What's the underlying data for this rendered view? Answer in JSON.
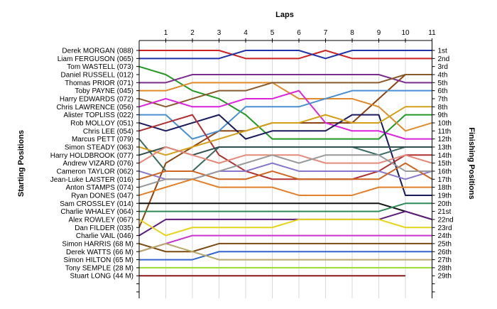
{
  "chart_data": {
    "type": "line",
    "title": "Laps",
    "ylabel_left": "Starting Positions",
    "ylabel_right": "Finishing Positions",
    "x": [
      0,
      1,
      2,
      3,
      4,
      5,
      6,
      7,
      8,
      9,
      10,
      11
    ],
    "x_tick_labels": [
      "1",
      "2",
      "3",
      "4",
      "5",
      "6",
      "7",
      "8",
      "9",
      "10",
      "11"
    ],
    "starting_labels": [
      "Derek MORGAN (088)",
      "Liam FERGUSON (065)",
      "Tom WASTELL (073)",
      "Daniel RUSSELL (012)",
      "Thomas PRIOR (071)",
      "Toby PAYNE (045)",
      "Harry EDWARDS (072)",
      "Chris LAWRENCE (056)",
      "Alister TOPLISS (022)",
      "Rob MOLLOY (051)",
      "Chris LEE (054)",
      "Marcus PETT (079)",
      "Simon STEADY (063)",
      "Harry HOLDBROOK (077)",
      "Andrew VIZARD (076)",
      "Cameron TAYLOR (062)",
      "Jean-Luke LAISTER (016)",
      "Anton STAMPS (074)",
      "Ryan DONES (047)",
      "Sam CROSSLEY (014)",
      "Charlie WHALEY (064)",
      "Alex ROWLEY (067)",
      "Dan FILDER (035)",
      "Charlie VAIL (046)",
      "Simon HARRIS (68 M)",
      "Derek WATTS (66 M)",
      "Simon HILTON (65 M)",
      "Tony SEMPLE (28 M)",
      "Stuart LONG (44 M)"
    ],
    "finishing_labels": [
      "1st",
      "2nd",
      "3rd",
      "4th",
      "5th",
      "6th",
      "7th",
      "8th",
      "9th",
      "10th",
      "11th",
      "12th",
      "13th",
      "14th",
      "15th",
      "16th",
      "17th",
      "18th",
      "19th",
      "20th",
      "21st",
      "22nd",
      "23rd",
      "24th",
      "25th",
      "26th",
      "27th",
      "28th",
      "29th"
    ],
    "series": [
      {
        "color": "#cc2222",
        "values": [
          1,
          1,
          1,
          1,
          2,
          2,
          2,
          1,
          2,
          2,
          2,
          2
        ]
      },
      {
        "color": "#2233aa",
        "values": [
          2,
          2,
          2,
          2,
          1,
          1,
          1,
          2,
          1,
          1,
          1,
          1
        ]
      },
      {
        "color": "#229922",
        "values": [
          3,
          4,
          6,
          7,
          9,
          12,
          12,
          12,
          12,
          12,
          9,
          9
        ]
      },
      {
        "color": "#8b4513",
        "values": [
          23,
          15,
          13,
          11,
          11,
          10,
          10,
          10,
          10,
          7,
          4,
          4
        ]
      },
      {
        "color": "#7b2d8e",
        "values": [
          5,
          5,
          4,
          4,
          4,
          4,
          4,
          4,
          4,
          4,
          5,
          5
        ]
      },
      {
        "color": "#e08a2a",
        "values": [
          6,
          6,
          5,
          5,
          5,
          5,
          7,
          7,
          7,
          8,
          11,
          10
        ]
      },
      {
        "color": "#8b5a2b",
        "values": [
          7,
          8,
          7,
          6,
          6,
          5,
          5,
          5,
          5,
          5,
          4,
          4
        ]
      },
      {
        "color": "#dd22dd",
        "values": [
          8,
          7,
          8,
          8,
          7,
          7,
          6,
          10,
          11,
          11,
          12,
          12
        ]
      },
      {
        "color": "#4a8fd0",
        "values": [
          9,
          9,
          12,
          11,
          8,
          8,
          8,
          7,
          6,
          6,
          6,
          6
        ]
      },
      {
        "color": "#1a1a5e",
        "values": [
          10,
          11,
          10,
          9,
          12,
          11,
          11,
          11,
          9,
          9,
          19,
          19
        ]
      },
      {
        "color": "#b03030",
        "values": [
          11,
          10,
          9,
          14,
          16,
          17,
          17,
          17,
          17,
          16,
          14,
          14
        ]
      },
      {
        "color": "#3a6a60",
        "values": [
          12,
          16,
          16,
          13,
          13,
          13,
          13,
          13,
          13,
          14,
          13,
          13
        ]
      },
      {
        "color": "#d4a017",
        "values": [
          13,
          14,
          13,
          12,
          11,
          10,
          10,
          9,
          10,
          10,
          8,
          8
        ]
      },
      {
        "color": "#2f4f4f",
        "values": [
          14,
          13,
          14,
          13,
          13,
          13,
          13,
          13,
          13,
          13,
          13,
          13
        ]
      },
      {
        "color": "#e38a7a",
        "values": [
          15,
          13,
          14,
          15,
          14,
          14,
          14,
          15,
          15,
          15,
          14,
          15
        ]
      },
      {
        "color": "#8877cc",
        "values": [
          16,
          17,
          17,
          16,
          16,
          15,
          16,
          16,
          16,
          16,
          17,
          16
        ]
      },
      {
        "color": "#cc6622",
        "values": [
          17,
          16,
          16,
          17,
          17,
          16,
          17,
          17,
          17,
          17,
          15,
          17
        ]
      },
      {
        "color": "#999999",
        "values": [
          18,
          17,
          17,
          16,
          15,
          14,
          15,
          14,
          14,
          14,
          16,
          16
        ]
      },
      {
        "color": "#e3802a",
        "values": [
          19,
          18,
          17,
          18,
          18,
          18,
          19,
          19,
          19,
          18,
          18,
          18
        ]
      },
      {
        "color": "#111111",
        "values": [
          20,
          20,
          20,
          20,
          20,
          20,
          20,
          20,
          20,
          20,
          21,
          22
        ]
      },
      {
        "color": "#2e8b57",
        "values": [
          21,
          21,
          21,
          21,
          21,
          21,
          21,
          21,
          21,
          21,
          20,
          20
        ]
      },
      {
        "color": "#5c1a7a",
        "values": [
          24,
          22,
          22,
          22,
          22,
          22,
          22,
          22,
          22,
          22,
          21,
          22
        ]
      },
      {
        "color": "#e6d41a",
        "values": [
          22,
          24,
          23,
          23,
          23,
          23,
          22,
          22,
          22,
          22,
          23,
          23
        ]
      },
      {
        "color": "#cc33cc",
        "values": [
          26,
          25,
          24,
          24,
          24,
          24,
          24,
          24,
          24,
          24,
          24,
          24
        ]
      },
      {
        "color": "#7a4a10",
        "values": [
          25,
          26,
          26,
          25,
          25,
          25,
          25,
          25,
          25,
          25,
          25,
          25
        ]
      },
      {
        "color": "#3366cc",
        "values": [
          27,
          27,
          27,
          26,
          26,
          26,
          26,
          26,
          26,
          26,
          26,
          26
        ]
      },
      {
        "color": "#b8a86a",
        "values": [
          26,
          25,
          26,
          27,
          27,
          27,
          27,
          27,
          27,
          27,
          27,
          27
        ]
      },
      {
        "color": "#99dd33",
        "values": [
          28,
          28,
          28,
          28,
          28,
          28,
          28,
          28,
          28,
          28,
          28,
          28
        ]
      },
      {
        "color": "#8b1a1a",
        "values": [
          29,
          29,
          29,
          29,
          29,
          29,
          29,
          29,
          29,
          29,
          29,
          null
        ]
      }
    ],
    "ylim": [
      1,
      29
    ],
    "grid": true,
    "grid_axis": "x",
    "legend": "none"
  }
}
